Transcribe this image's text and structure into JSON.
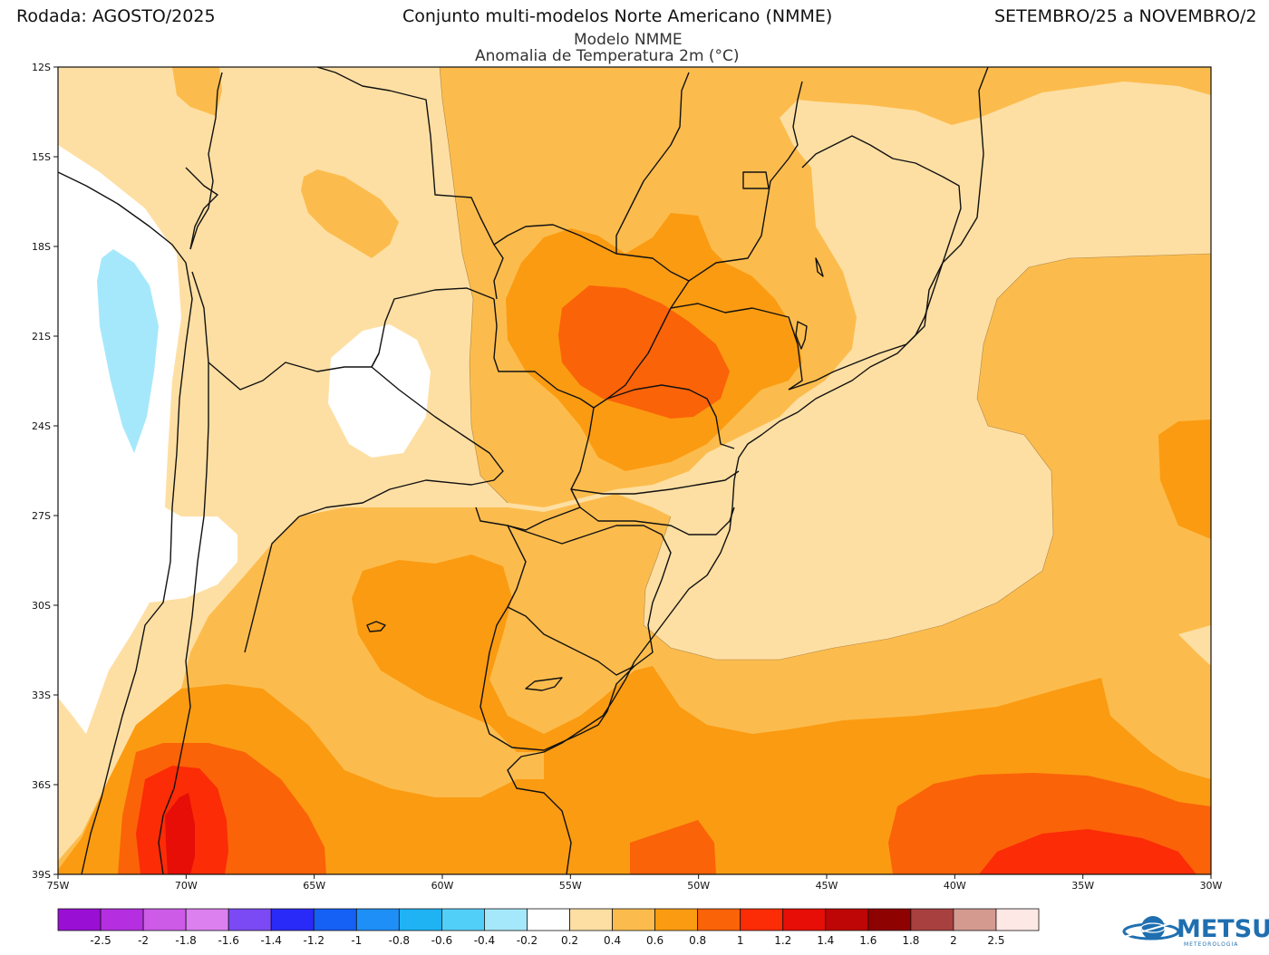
{
  "header": {
    "left": "Rodada:  AGOSTO/2025",
    "center": "Conjunto multi-modelos Norte Americano (NMME)",
    "right": "SETEMBRO/25 a NOVEMBRO/2",
    "model": "Modelo NMME",
    "variable": "Anomalia de Temperatura 2m (°C)"
  },
  "axes": {
    "lat_labels": [
      "12S",
      "15S",
      "18S",
      "21S",
      "24S",
      "27S",
      "30S",
      "33S",
      "36S",
      "39S"
    ],
    "lon_labels": [
      "75W",
      "70W",
      "65W",
      "60W",
      "55W",
      "50W",
      "45W",
      "40W",
      "35W",
      "30W"
    ]
  },
  "colorbar": {
    "colors": [
      "#9a0fd4",
      "#b52fe0",
      "#cd5be8",
      "#dc80ef",
      "#7c4af5",
      "#2a2af8",
      "#1560f5",
      "#1e8ff7",
      "#1fb3f3",
      "#52cff8",
      "#a6e8fb",
      "#ffffff",
      "#fedfa3",
      "#fcbc4d",
      "#fb9b11",
      "#fb6308",
      "#fb2c06",
      "#e60e06",
      "#be0606",
      "#8f0202",
      "#a84040",
      "#d49a90",
      "#fee8e6"
    ],
    "labels": [
      "-2.5",
      "-2",
      "-1.8",
      "-1.6",
      "-1.4",
      "-1.2",
      "-1",
      "-0.8",
      "-0.6",
      "-0.4",
      "-0.2",
      "0.2",
      "0.4",
      "0.6",
      "0.8",
      "1",
      "1.2",
      "1.4",
      "1.6",
      "1.8",
      "2",
      "2.5"
    ]
  },
  "palette": {
    "anom_02_04": "#fedfa3",
    "anom_04_06": "#fcbc4d",
    "anom_06_08": "#fb9b11",
    "anom_08_10": "#fb6308",
    "anom_10_12": "#fb2c06",
    "anom_12_14": "#e60e06",
    "anom_neg_04_02": "#a6e8fb",
    "neutral": "#ffffff",
    "boundary": "#111111"
  },
  "logo": {
    "name": "METSUL",
    "tagline": "METEOROLOGIA"
  }
}
